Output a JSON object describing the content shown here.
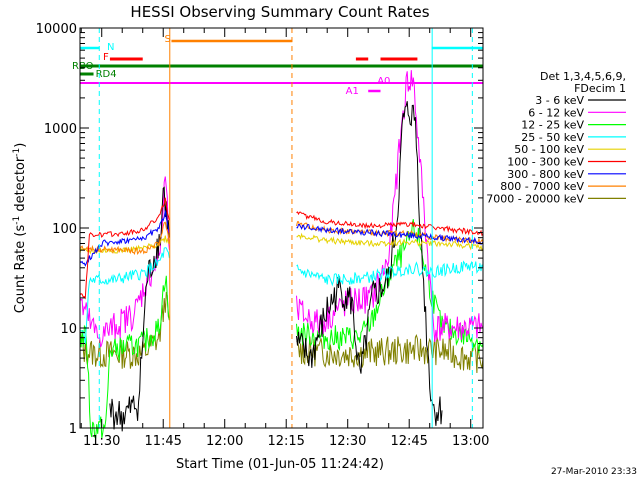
{
  "chart_data": {
    "type": "line",
    "title": "HESSI Observing Summary Count Rates",
    "xlabel": "Start Time (01-Jun-05 11:24:42)",
    "ylabel_main": "Count Rate (s",
    "ylabel_sup1": "-1",
    "ylabel_mid": " detector",
    "ylabel_sup2": "-1",
    "ylabel_end": ")",
    "y_scale": "log",
    "ylim": [
      1,
      10000
    ],
    "xlim": [
      "11:24:42",
      "13:03:00"
    ],
    "x_ticks": [
      "11:30",
      "11:45",
      "12:00",
      "12:15",
      "12:30",
      "12:45",
      "13:00"
    ],
    "y_ticks": [
      "1",
      "10",
      "100",
      "1000",
      "10000"
    ],
    "legend_title_1": "Det 1,3,4,5,6,9,",
    "legend_title_2": "FDecim 1",
    "legend_placement": "right",
    "series": [
      {
        "name": "3 - 6 keV",
        "color": "#000000"
      },
      {
        "name": "6 - 12 keV",
        "color": "#ff00ff"
      },
      {
        "name": "12 - 25 keV",
        "color": "#00ff00"
      },
      {
        "name": "25 - 50 keV",
        "color": "#00ffff"
      },
      {
        "name": "50 - 100 keV",
        "color": "#e6d200"
      },
      {
        "name": "100 - 300 keV",
        "color": "#ff0000"
      },
      {
        "name": "300 - 800 keV",
        "color": "#0000ff"
      },
      {
        "name": "800 - 7000 keV",
        "color": "#ff8000"
      },
      {
        "name": "7000 - 20000 keV",
        "color": "#808000"
      }
    ],
    "flags": [
      {
        "label": "N",
        "color": "#00ffff"
      },
      {
        "label": "S",
        "color": "#ff8000"
      },
      {
        "label": "F",
        "color": "#ff0000"
      },
      {
        "label": "RBO",
        "color": "#008000"
      },
      {
        "label": "RD4",
        "color": "#008000"
      },
      {
        "label": "A0",
        "color": "#ff00ff"
      },
      {
        "label": "A1",
        "color": "#ff00ff"
      }
    ],
    "timestamp": "27-Mar-2010 23:33"
  }
}
